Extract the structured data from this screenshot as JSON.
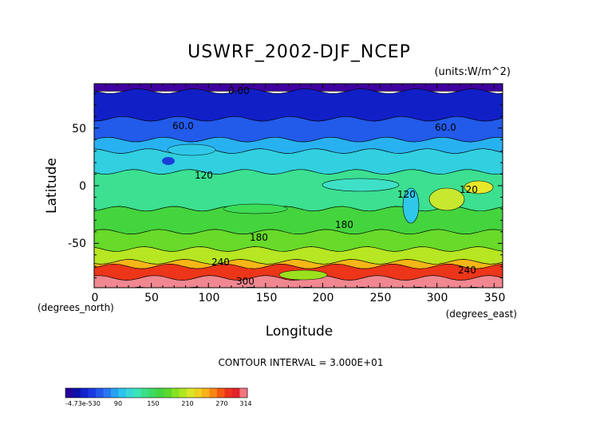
{
  "chart_data": {
    "type": "heatmap",
    "title": "USWRF_2002-DJF_NCEP",
    "units": "(units:W/m^2)",
    "xlabel": "Longitude",
    "ylabel": "Latitude",
    "x_unit_label": "(degrees_east)",
    "y_unit_label": "(degrees_north)",
    "xlim": [
      0,
      357.5
    ],
    "ylim": [
      -88.5,
      88.5
    ],
    "x_ticks": [
      "0",
      "50",
      "100",
      "150",
      "200",
      "250",
      "300",
      "350"
    ],
    "y_ticks": [
      "50",
      "0",
      "-50"
    ],
    "contour_interval_text": "CONTOUR INTERVAL = 3.000E+01",
    "contour_labels": [
      "0.00",
      "60.0",
      "60.0",
      "120",
      "120",
      "120",
      "180",
      "180",
      "240",
      "240",
      "300"
    ],
    "colorbar": {
      "tick_labels": [
        "-4.73e-530",
        "90",
        "150",
        "210",
        "270",
        "314"
      ],
      "range": [
        -4.73e-05,
        314
      ]
    },
    "zonal_bands": [
      {
        "lat_from": 90,
        "lat_to": 82,
        "value": 0
      },
      {
        "lat_from": 82,
        "lat_to": 58,
        "value": 30
      },
      {
        "lat_from": 58,
        "lat_to": 40,
        "value": 60
      },
      {
        "lat_from": 40,
        "lat_to": 30,
        "value": 90
      },
      {
        "lat_from": 30,
        "lat_to": 12,
        "value": 105
      },
      {
        "lat_from": 12,
        "lat_to": -20,
        "value": 135
      },
      {
        "lat_from": -20,
        "lat_to": -40,
        "value": 165
      },
      {
        "lat_from": -40,
        "lat_to": -55,
        "value": 180
      },
      {
        "lat_from": -55,
        "lat_to": -66,
        "value": 205
      },
      {
        "lat_from": -66,
        "lat_to": -70,
        "value": 240
      },
      {
        "lat_from": -70,
        "lat_to": -80,
        "value": 280
      },
      {
        "lat_from": -80,
        "lat_to": -90,
        "value": 310
      }
    ]
  }
}
